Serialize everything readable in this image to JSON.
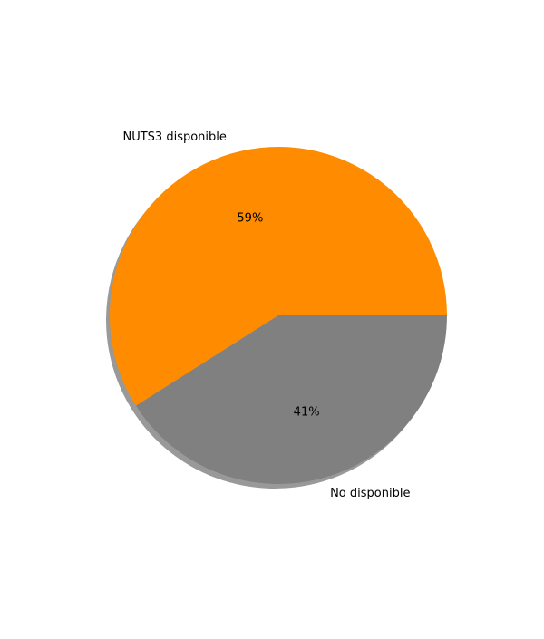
{
  "chart_data": {
    "type": "pie",
    "shadow": true,
    "start_angle_deg": 0,
    "direction": "counterclockwise",
    "slices": [
      {
        "label": "NUTS3 disponible",
        "value": 59,
        "pct_label": "59%",
        "color": "#ff8c00"
      },
      {
        "label": "No disponible",
        "value": 41,
        "pct_label": "41%",
        "color": "#808080"
      }
    ]
  }
}
